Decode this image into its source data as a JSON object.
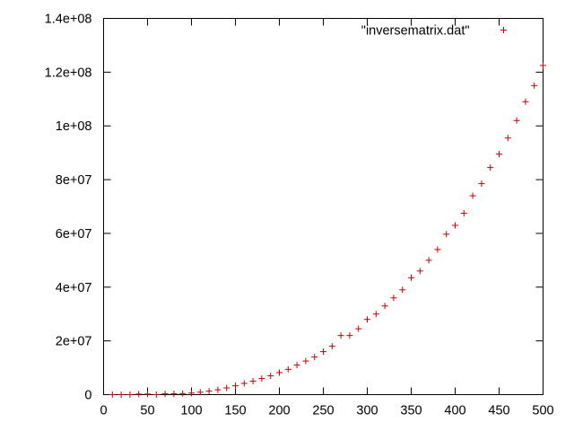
{
  "chart_data": {
    "type": "scatter",
    "xlim": [
      0,
      500
    ],
    "ylim": [
      0,
      140000000
    ],
    "xticks": [
      "0",
      "50",
      "100",
      "150",
      "200",
      "250",
      "300",
      "350",
      "400",
      "450",
      "500"
    ],
    "xtick_values": [
      0,
      50,
      100,
      150,
      200,
      250,
      300,
      350,
      400,
      450,
      500
    ],
    "yticks": [
      "0",
      "2e+07",
      "4e+07",
      "6e+07",
      "8e+07",
      "1e+08",
      "1.2e+08",
      "1.4e+08"
    ],
    "ytick_values": [
      0,
      20000000,
      40000000,
      60000000,
      80000000,
      100000000,
      120000000,
      140000000
    ],
    "grid": false,
    "legend_position": "top-right",
    "marker_color": "#cc0000",
    "series": [
      {
        "name": "\"inversematrix.dat\"",
        "marker": "plus",
        "x": [
          10,
          20,
          30,
          40,
          50,
          60,
          70,
          80,
          90,
          100,
          110,
          120,
          130,
          140,
          150,
          160,
          170,
          180,
          190,
          200,
          210,
          220,
          230,
          240,
          250,
          260,
          270,
          280,
          290,
          300,
          310,
          320,
          330,
          340,
          350,
          360,
          370,
          380,
          390,
          400,
          410,
          420,
          430,
          440,
          450,
          460,
          470,
          480,
          490,
          500
        ],
        "y": [
          0,
          0,
          0,
          200000,
          200000,
          0,
          300000,
          300000,
          400000,
          600000,
          900000,
          1300000,
          1800000,
          2500000,
          3300000,
          4200000,
          5000000,
          6000000,
          7000000,
          8200000,
          9400000,
          11000000,
          12500000,
          14000000,
          16000000,
          18000000,
          22000000,
          22000000,
          24500000,
          28000000,
          30000000,
          33000000,
          36000000,
          39000000,
          43500000,
          46000000,
          50000000,
          54000000,
          59700000,
          63000000,
          67500000,
          74000000,
          78500000,
          84500000,
          89500000,
          95500000,
          102000000,
          109000000,
          115000000,
          122500000
        ]
      }
    ]
  }
}
